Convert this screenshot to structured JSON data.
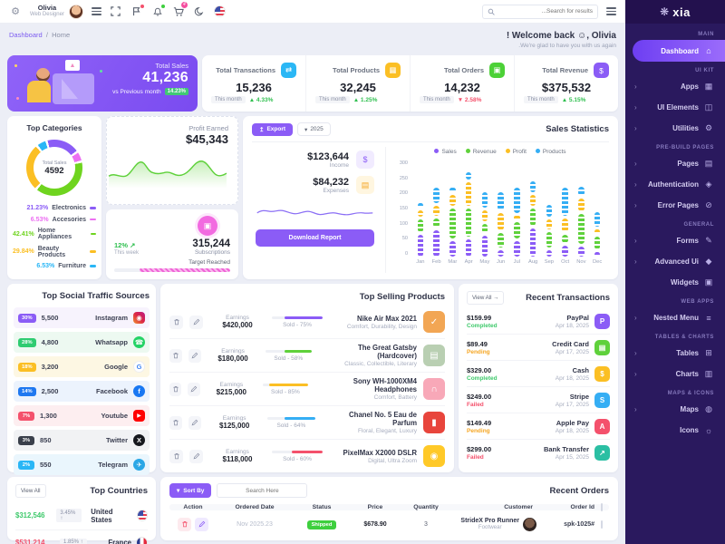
{
  "topbar": {
    "user": {
      "name": "Olivia",
      "role": "Web Designer"
    },
    "search_placeholder": "...Search for results",
    "cart_badge": "4",
    "brand": "xia"
  },
  "breadcrumb": {
    "section": "Dashboard",
    "page": "Home"
  },
  "welcome": {
    "title": "! Welcome back ☺, Olivia",
    "subtitle": ".We're glad to have you with us again"
  },
  "hero": {
    "label": "Total Sales",
    "value": "41,236",
    "compare": "vs Previous month",
    "badge": "14.23%"
  },
  "stats": {
    "cards": [
      {
        "label": "Total Transactions",
        "value": "15,236",
        "period": "This month",
        "delta": "4.33%",
        "direction": "up",
        "delta_color": "#2fbf4f",
        "icon": "transactions-icon",
        "icon_bg": "#2bb7f5",
        "icon_glyph": "⇄"
      },
      {
        "label": "Total Products",
        "value": "32,245",
        "period": "This month",
        "delta": "1.25%",
        "direction": "up",
        "delta_color": "#2fbf4f",
        "icon": "products-icon",
        "icon_bg": "#fbbf24",
        "icon_glyph": "▦"
      },
      {
        "label": "Total Orders",
        "value": "14,232",
        "period": "This month",
        "delta": "2.58%",
        "direction": "down",
        "delta_color": "#f4516c",
        "icon": "orders-icon",
        "icon_bg": "#4cd137",
        "icon_glyph": "▣"
      },
      {
        "label": "Total Revenue",
        "value": "$375,532",
        "period": "This month",
        "delta": "5.15%",
        "direction": "up",
        "delta_color": "#2fbf4f",
        "icon": "revenue-icon",
        "icon_bg": "#8b5cf6",
        "icon_glyph": "$"
      }
    ]
  },
  "categories": {
    "title": "Top Categories",
    "center_label": "Total Sales",
    "center_value": "4592"
  },
  "profit": {
    "label": "Profit Earned",
    "value": "$45,343"
  },
  "subs": {
    "delta": "12%",
    "period": "This week",
    "value": "315,244",
    "label": "Subscriptions",
    "target": "Target Reached",
    "progress_pct": 78
  },
  "sales": {
    "title": "Sales Statistics",
    "export_label": "Export",
    "year": "2025",
    "income_value": "$123,644",
    "income_label": "Income",
    "expense_value": "$84,232",
    "expense_label": "Expenses",
    "download_label": "Download Report"
  },
  "social": {
    "title": "Top Social Traffic Sources",
    "rows": [
      {
        "pct": "30%",
        "pct_bg": "#8b5cf6",
        "value": "5,500",
        "label": "Instagram",
        "icon": "instagram-icon",
        "row_bg": "#f7f3fd"
      },
      {
        "pct": "28%",
        "pct_bg": "#2fcc71",
        "value": "4,800",
        "label": "Whatsapp",
        "icon": "whatsapp-icon",
        "row_bg": "#edf9f1"
      },
      {
        "pct": "18%",
        "pct_bg": "#fbbf24",
        "value": "3,200",
        "label": "Google",
        "icon": "google-icon",
        "row_bg": "#fdf7e3"
      },
      {
        "pct": "14%",
        "pct_bg": "#1f78f0",
        "value": "2,500",
        "label": "Facebook",
        "icon": "facebook-icon",
        "row_bg": "#ecf3fd"
      },
      {
        "pct": "7%",
        "pct_bg": "#f4516c",
        "value": "1,300",
        "label": "Youtube",
        "icon": "youtube-icon",
        "row_bg": "#fdeef0"
      },
      {
        "pct": "3%",
        "pct_bg": "#3a3f4a",
        "value": "850",
        "label": "Twitter",
        "icon": "twitter-icon",
        "row_bg": "#f1f2f4"
      },
      {
        "pct": "2%",
        "pct_bg": "#29b6f6",
        "value": "550",
        "label": "Telegram",
        "icon": "telegram-icon",
        "row_bg": "#eaf6fd"
      }
    ]
  },
  "selling": {
    "title": "Top Selling Products",
    "earnings_label": "Earnings",
    "rows": [
      {
        "name": "Nike Air Max 2021",
        "desc": "Comfort, Durability, Design",
        "sold": "Sold - 75%",
        "pct": 75,
        "bar_color": "#8b5cf6",
        "earnings": "$420,000",
        "thumb_bg": "#f2a654",
        "thumb_glyph": "✓"
      },
      {
        "name": "The Great Gatsby (Hardcover)",
        "desc": "Classic, Collectible, Literary",
        "sold": "Sold - 58%",
        "pct": 58,
        "bar_color": "#5fd13b",
        "earnings": "$180,000",
        "thumb_bg": "#b9cfb2",
        "thumb_glyph": "▤"
      },
      {
        "name": "Sony WH-1000XM4 Headphones",
        "desc": "Comfort, Battery",
        "sold": "Sold - 85%",
        "pct": 85,
        "bar_color": "#fbbf24",
        "earnings": "$215,000",
        "thumb_bg": "#f8a8b8",
        "thumb_glyph": "∩"
      },
      {
        "name": "Chanel No. 5 Eau de Parfum",
        "desc": "Floral, Elegant, Luxury",
        "sold": "Sold - 64%",
        "pct": 64,
        "bar_color": "#35aef4",
        "earnings": "$125,000",
        "thumb_bg": "#e8453c",
        "thumb_glyph": "▮"
      },
      {
        "name": "PixelMax X2000 DSLR",
        "desc": "Digital, Ultra Zoom",
        "sold": "Sold - 60%",
        "pct": 60,
        "bar_color": "#f4516c",
        "earnings": "$118,000",
        "thumb_bg": "#ffc928",
        "thumb_glyph": "◉"
      }
    ]
  },
  "transactions": {
    "title": "Recent Transactions",
    "view_all": "View All →",
    "rows": [
      {
        "method": "PayPal",
        "date": "Apr 18, 2025",
        "amount": "$159.99",
        "status": "Completed",
        "status_color": "#3ec96b",
        "icon": "paypal-icon",
        "icon_bg": "#8b5cf6",
        "icon_glyph": "P"
      },
      {
        "method": "Credit Card",
        "date": "Apr 17, 2025",
        "amount": "$89.49",
        "status": "Pending",
        "status_color": "#f5a623",
        "icon": "credit-card-icon",
        "icon_bg": "#5fd13b",
        "icon_glyph": "▤"
      },
      {
        "method": "Cash",
        "date": "Apr 18, 2025",
        "amount": "$329.00",
        "status": "Completed",
        "status_color": "#3ec96b",
        "icon": "cash-icon",
        "icon_bg": "#fbbf24",
        "icon_glyph": "$"
      },
      {
        "method": "Stripe",
        "date": "Apr 17, 2025",
        "amount": "$249.00",
        "status": "Failed",
        "status_color": "#f4516c",
        "icon": "stripe-icon",
        "icon_bg": "#35aef4",
        "icon_glyph": "S"
      },
      {
        "method": "Apple Pay",
        "date": "Apr 18, 2025",
        "amount": "$149.49",
        "status": "Pending",
        "status_color": "#f5a623",
        "icon": "apple-pay-icon",
        "icon_bg": "#f4516c",
        "icon_glyph": "A"
      },
      {
        "method": "Bank Transfer",
        "date": "Apr 15, 2025",
        "amount": "$299.00",
        "status": "Failed",
        "status_color": "#f4516c",
        "icon": "bank-transfer-icon",
        "icon_bg": "#2bbfa3",
        "icon_glyph": "↗"
      }
    ]
  },
  "countries": {
    "title": "Top Countries",
    "view_all": "View All",
    "rows": [
      {
        "country": "United States",
        "pct": "3.45% ↑",
        "amount": "$312,546",
        "amount_color": "#3ec96b",
        "flag": "us-flag-icon"
      },
      {
        "country": "France",
        "pct": "1.85% ↑",
        "amount": "$531,214",
        "amount_color": "#f4516c",
        "flag": "france-flag-icon"
      }
    ]
  },
  "orders": {
    "title": "Recent Orders",
    "sort_label": "Sort By",
    "search_placeholder": "Search Here",
    "headers": [
      "Action",
      "Ordered Date",
      "Status",
      "Price",
      "Quantity",
      "Customer",
      "Order Id"
    ],
    "rows": [
      {
        "date": "Nov 2025.23",
        "status": "Shipped",
        "status_bg": "#3ecf3e",
        "price": "$678.90",
        "quantity": "3",
        "customer": "StrideX Pro Runner",
        "customer_sub": "Footwear",
        "order_id": "spk-1025#"
      }
    ]
  },
  "sidebar": {
    "brand": "xia",
    "sections": [
      {
        "header": "MAIN",
        "items": [
          {
            "label": "Dashboard",
            "icon": "home",
            "active": true,
            "chevron": false
          }
        ]
      },
      {
        "header": "UI KIT",
        "items": [
          {
            "label": "Apps",
            "icon": "apps",
            "chevron": true
          },
          {
            "label": "UI Elements",
            "icon": "ui",
            "chevron": true
          },
          {
            "label": "Utilities",
            "icon": "utilities",
            "chevron": true
          }
        ]
      },
      {
        "header": "PRE-BUILD PAGES",
        "items": [
          {
            "label": "Pages",
            "icon": "pages",
            "chevron": true
          },
          {
            "label": "Authentication",
            "icon": "auth",
            "chevron": true
          },
          {
            "label": "Error Pages",
            "icon": "error",
            "chevron": true
          }
        ]
      },
      {
        "header": "GENERAL",
        "items": [
          {
            "label": "Forms",
            "icon": "forms",
            "chevron": true
          },
          {
            "label": "Advanced Ui",
            "icon": "advanced",
            "chevron": true
          },
          {
            "label": "Widgets",
            "icon": "widgets",
            "chevron": false
          }
        ]
      },
      {
        "header": "WEB APPS",
        "items": [
          {
            "label": "Nested Menu",
            "icon": "nested",
            "chevron": true
          }
        ]
      },
      {
        "header": "TABLES & CHARTS",
        "items": [
          {
            "label": "Tables",
            "icon": "tables",
            "chevron": true
          },
          {
            "label": "Charts",
            "icon": "charts",
            "chevron": true
          }
        ]
      },
      {
        "header": "MAPS & ICONS",
        "items": [
          {
            "label": "Maps",
            "icon": "maps",
            "chevron": true
          },
          {
            "label": "Icons",
            "icon": "icons",
            "chevron": false
          }
        ]
      }
    ]
  },
  "chart_data": [
    {
      "type": "bar",
      "title": "Sales Statistics",
      "categories": [
        "Jan",
        "Feb",
        "Mar",
        "Apr",
        "May",
        "Jun",
        "Jul",
        "Aug",
        "Sep",
        "Oct",
        "Nov",
        "Dec"
      ],
      "series": [
        {
          "name": "Sales",
          "color": "#8b5cf6",
          "values": [
            70,
            85,
            50,
            55,
            65,
            20,
            50,
            90,
            20,
            35,
            32,
            14
          ]
        },
        {
          "name": "Revenue",
          "color": "#5fd13b",
          "values": [
            40,
            28,
            95,
            90,
            30,
            45,
            50,
            55,
            50,
            25,
            95,
            40
          ]
        },
        {
          "name": "Profit",
          "color": "#fbbf24",
          "values": [
            20,
            30,
            35,
            75,
            35,
            55,
            14,
            35,
            30,
            45,
            40,
            14
          ]
        },
        {
          "name": "Products",
          "color": "#35aef4",
          "values": [
            14,
            50,
            12,
            22,
            50,
            58,
            80,
            35,
            40,
            88,
            28,
            48
          ]
        }
      ],
      "stacked": true,
      "ylim": [
        0,
        300
      ],
      "yticks": [
        0,
        50,
        100,
        150,
        200,
        250,
        300
      ],
      "legend_position": "top",
      "grid": false
    },
    {
      "type": "pie",
      "title": "Top Categories",
      "center_label": "Total Sales",
      "center_value": 4592,
      "segments": [
        {
          "label": "Electronics",
          "pct": 21.23,
          "color": "#8b5cf6"
        },
        {
          "label": "Accesories",
          "pct": 6.53,
          "color": "#ec6ff2"
        },
        {
          "label": "Home Appliances",
          "pct": 42.41,
          "color": "#6fd41f"
        },
        {
          "label": "Beauty Products",
          "pct": 29.84,
          "color": "#fbbf24"
        },
        {
          "label": "Furniture",
          "pct": 6.53,
          "color": "#29b6f6"
        }
      ]
    }
  ]
}
